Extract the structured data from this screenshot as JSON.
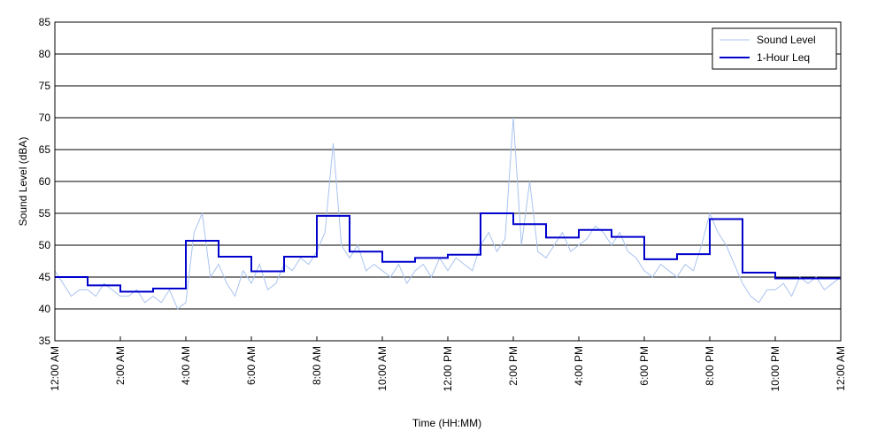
{
  "chart_data": {
    "type": "line",
    "x_label": "Time (HH:MM)",
    "y_label": "Sound Level (dBA)",
    "xlim": [
      0,
      24
    ],
    "xticks": [
      {
        "value": 0,
        "label": "12:00 AM"
      },
      {
        "value": 2,
        "label": "2:00 AM"
      },
      {
        "value": 4,
        "label": "4:00 AM"
      },
      {
        "value": 6,
        "label": "6:00 AM"
      },
      {
        "value": 8,
        "label": "8:00 AM"
      },
      {
        "value": 10,
        "label": "10:00 AM"
      },
      {
        "value": 12,
        "label": "12:00 PM"
      },
      {
        "value": 14,
        "label": "2:00 PM"
      },
      {
        "value": 16,
        "label": "4:00 PM"
      },
      {
        "value": 18,
        "label": "6:00 PM"
      },
      {
        "value": 20,
        "label": "8:00 PM"
      },
      {
        "value": 22,
        "label": "10:00 PM"
      },
      {
        "value": 24,
        "label": "12:00 AM"
      }
    ],
    "ylim": [
      35,
      85
    ],
    "yticks": [
      35,
      40,
      45,
      50,
      55,
      60,
      65,
      70,
      75,
      80,
      85
    ],
    "grid": true,
    "legend": "upper right",
    "series": [
      {
        "name": "Sound Level",
        "color": "#a9c3ef",
        "step": false,
        "x": [
          0,
          0.25,
          0.5,
          0.75,
          1,
          1.25,
          1.5,
          1.75,
          2,
          2.25,
          2.5,
          2.75,
          3,
          3.25,
          3.5,
          3.75,
          4,
          4.25,
          4.5,
          4.75,
          5,
          5.25,
          5.5,
          5.75,
          6,
          6.25,
          6.5,
          6.75,
          7,
          7.25,
          7.5,
          7.75,
          8,
          8.25,
          8.5,
          8.75,
          9,
          9.25,
          9.5,
          9.75,
          10,
          10.25,
          10.5,
          10.75,
          11,
          11.25,
          11.5,
          11.75,
          12,
          12.25,
          12.5,
          12.75,
          13,
          13.25,
          13.5,
          13.75,
          14,
          14.25,
          14.5,
          14.75,
          15,
          15.25,
          15.5,
          15.75,
          16,
          16.25,
          16.5,
          16.75,
          17,
          17.25,
          17.5,
          17.75,
          18,
          18.25,
          18.5,
          18.75,
          19,
          19.25,
          19.5,
          19.75,
          20,
          20.25,
          20.5,
          20.75,
          21,
          21.25,
          21.5,
          21.75,
          22,
          22.25,
          22.5,
          22.75,
          23,
          23.25,
          23.5,
          23.75,
          24
        ],
        "values": [
          46,
          44,
          42,
          43,
          43,
          42,
          44,
          43,
          42,
          42,
          43,
          41,
          42,
          41,
          43,
          40,
          41,
          52,
          55,
          45,
          47,
          44,
          42,
          46,
          44,
          47,
          43,
          44,
          47,
          46,
          48,
          47,
          49,
          52,
          66,
          50,
          48,
          50,
          46,
          47,
          46,
          45,
          47,
          44,
          46,
          47,
          45,
          48,
          46,
          48,
          47,
          46,
          50,
          52,
          49,
          51,
          70,
          50,
          60,
          49,
          48,
          50,
          52,
          49,
          50,
          51,
          53,
          52,
          50,
          52,
          49,
          48,
          46,
          45,
          47,
          46,
          45,
          47,
          46,
          50,
          55,
          52,
          50,
          47,
          44,
          42,
          41,
          43,
          43,
          44,
          42,
          45,
          44,
          45,
          43,
          44,
          45
        ]
      },
      {
        "name": "1-Hour Leq",
        "color": "#0000cc",
        "step": true,
        "x": [
          0,
          1,
          2,
          3,
          4,
          5,
          6,
          7,
          8,
          9,
          10,
          11,
          12,
          13,
          14,
          15,
          16,
          17,
          18,
          19,
          20,
          21,
          22,
          23
        ],
        "values": [
          45,
          43.7,
          42.7,
          43.2,
          50.7,
          48.2,
          45.9,
          48.2,
          54.6,
          49,
          47.4,
          48,
          48.5,
          55,
          53.3,
          51.2,
          52.4,
          51.3,
          47.8,
          48.6,
          54.1,
          45.7,
          44.8,
          44.8
        ]
      }
    ]
  }
}
